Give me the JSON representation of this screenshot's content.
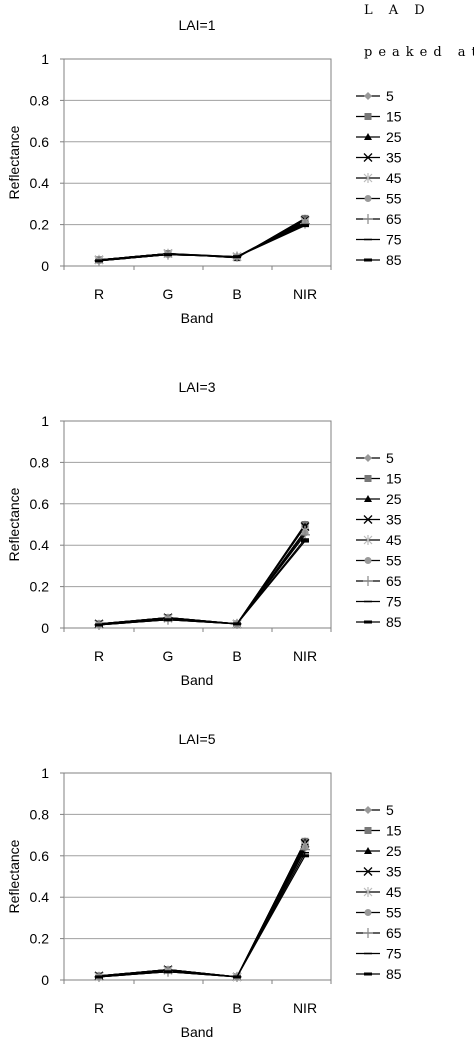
{
  "header_note": {
    "line1": "L A D",
    "line2": "peaked at"
  },
  "legend_entries": [
    "5",
    "15",
    "25",
    "35",
    "45",
    "55",
    "65",
    "75",
    "85"
  ],
  "chart_data": [
    {
      "type": "line",
      "title": "LAI=1",
      "xlabel": "Band",
      "ylabel": "Reflectance",
      "categories": [
        "R",
        "G",
        "B",
        "NIR"
      ],
      "ylim": [
        0,
        1
      ],
      "yticks": [
        "0",
        "0.2",
        "0.4",
        "0.6",
        "0.8",
        "1"
      ],
      "grid": true,
      "legend": "right",
      "series": [
        {
          "name": "5",
          "values": [
            0.03,
            0.06,
            0.04,
            0.23
          ]
        },
        {
          "name": "15",
          "values": [
            0.03,
            0.06,
            0.04,
            0.23
          ]
        },
        {
          "name": "25",
          "values": [
            0.03,
            0.06,
            0.04,
            0.225
          ]
        },
        {
          "name": "35",
          "values": [
            0.03,
            0.06,
            0.045,
            0.22
          ]
        },
        {
          "name": "45",
          "values": [
            0.03,
            0.06,
            0.045,
            0.215
          ]
        },
        {
          "name": "55",
          "values": [
            0.025,
            0.055,
            0.045,
            0.21
          ]
        },
        {
          "name": "65",
          "values": [
            0.025,
            0.055,
            0.045,
            0.205
          ]
        },
        {
          "name": "75",
          "values": [
            0.025,
            0.055,
            0.045,
            0.2
          ]
        },
        {
          "name": "85",
          "values": [
            0.025,
            0.055,
            0.045,
            0.195
          ]
        }
      ]
    },
    {
      "type": "line",
      "title": "LAI=3",
      "xlabel": "Band",
      "ylabel": "Reflectance",
      "categories": [
        "R",
        "G",
        "B",
        "NIR"
      ],
      "ylim": [
        0,
        1
      ],
      "yticks": [
        "0",
        "0.2",
        "0.4",
        "0.6",
        "0.8",
        "1"
      ],
      "grid": true,
      "legend": "right",
      "series": [
        {
          "name": "5",
          "values": [
            0.02,
            0.05,
            0.02,
            0.5
          ]
        },
        {
          "name": "15",
          "values": [
            0.02,
            0.05,
            0.02,
            0.5
          ]
        },
        {
          "name": "25",
          "values": [
            0.02,
            0.05,
            0.02,
            0.49
          ]
        },
        {
          "name": "35",
          "values": [
            0.02,
            0.05,
            0.02,
            0.49
          ]
        },
        {
          "name": "45",
          "values": [
            0.015,
            0.045,
            0.02,
            0.47
          ]
        },
        {
          "name": "55",
          "values": [
            0.015,
            0.045,
            0.02,
            0.46
          ]
        },
        {
          "name": "65",
          "values": [
            0.015,
            0.04,
            0.02,
            0.45
          ]
        },
        {
          "name": "75",
          "values": [
            0.015,
            0.04,
            0.02,
            0.43
          ]
        },
        {
          "name": "85",
          "values": [
            0.015,
            0.04,
            0.02,
            0.42
          ]
        }
      ]
    },
    {
      "type": "line",
      "title": "LAI=5",
      "xlabel": "Band",
      "ylabel": "Reflectance",
      "categories": [
        "R",
        "G",
        "B",
        "NIR"
      ],
      "ylim": [
        0,
        1
      ],
      "yticks": [
        "0",
        "0.2",
        "0.4",
        "0.6",
        "0.8",
        "1"
      ],
      "grid": true,
      "legend": "right",
      "series": [
        {
          "name": "5",
          "values": [
            0.02,
            0.05,
            0.015,
            0.67
          ]
        },
        {
          "name": "15",
          "values": [
            0.02,
            0.05,
            0.015,
            0.67
          ]
        },
        {
          "name": "25",
          "values": [
            0.02,
            0.05,
            0.015,
            0.665
          ]
        },
        {
          "name": "35",
          "values": [
            0.02,
            0.05,
            0.015,
            0.66
          ]
        },
        {
          "name": "45",
          "values": [
            0.015,
            0.045,
            0.015,
            0.65
          ]
        },
        {
          "name": "55",
          "values": [
            0.015,
            0.045,
            0.015,
            0.64
          ]
        },
        {
          "name": "65",
          "values": [
            0.015,
            0.04,
            0.015,
            0.63
          ]
        },
        {
          "name": "75",
          "values": [
            0.015,
            0.04,
            0.015,
            0.615
          ]
        },
        {
          "name": "85",
          "values": [
            0.015,
            0.04,
            0.015,
            0.6
          ]
        }
      ]
    }
  ]
}
